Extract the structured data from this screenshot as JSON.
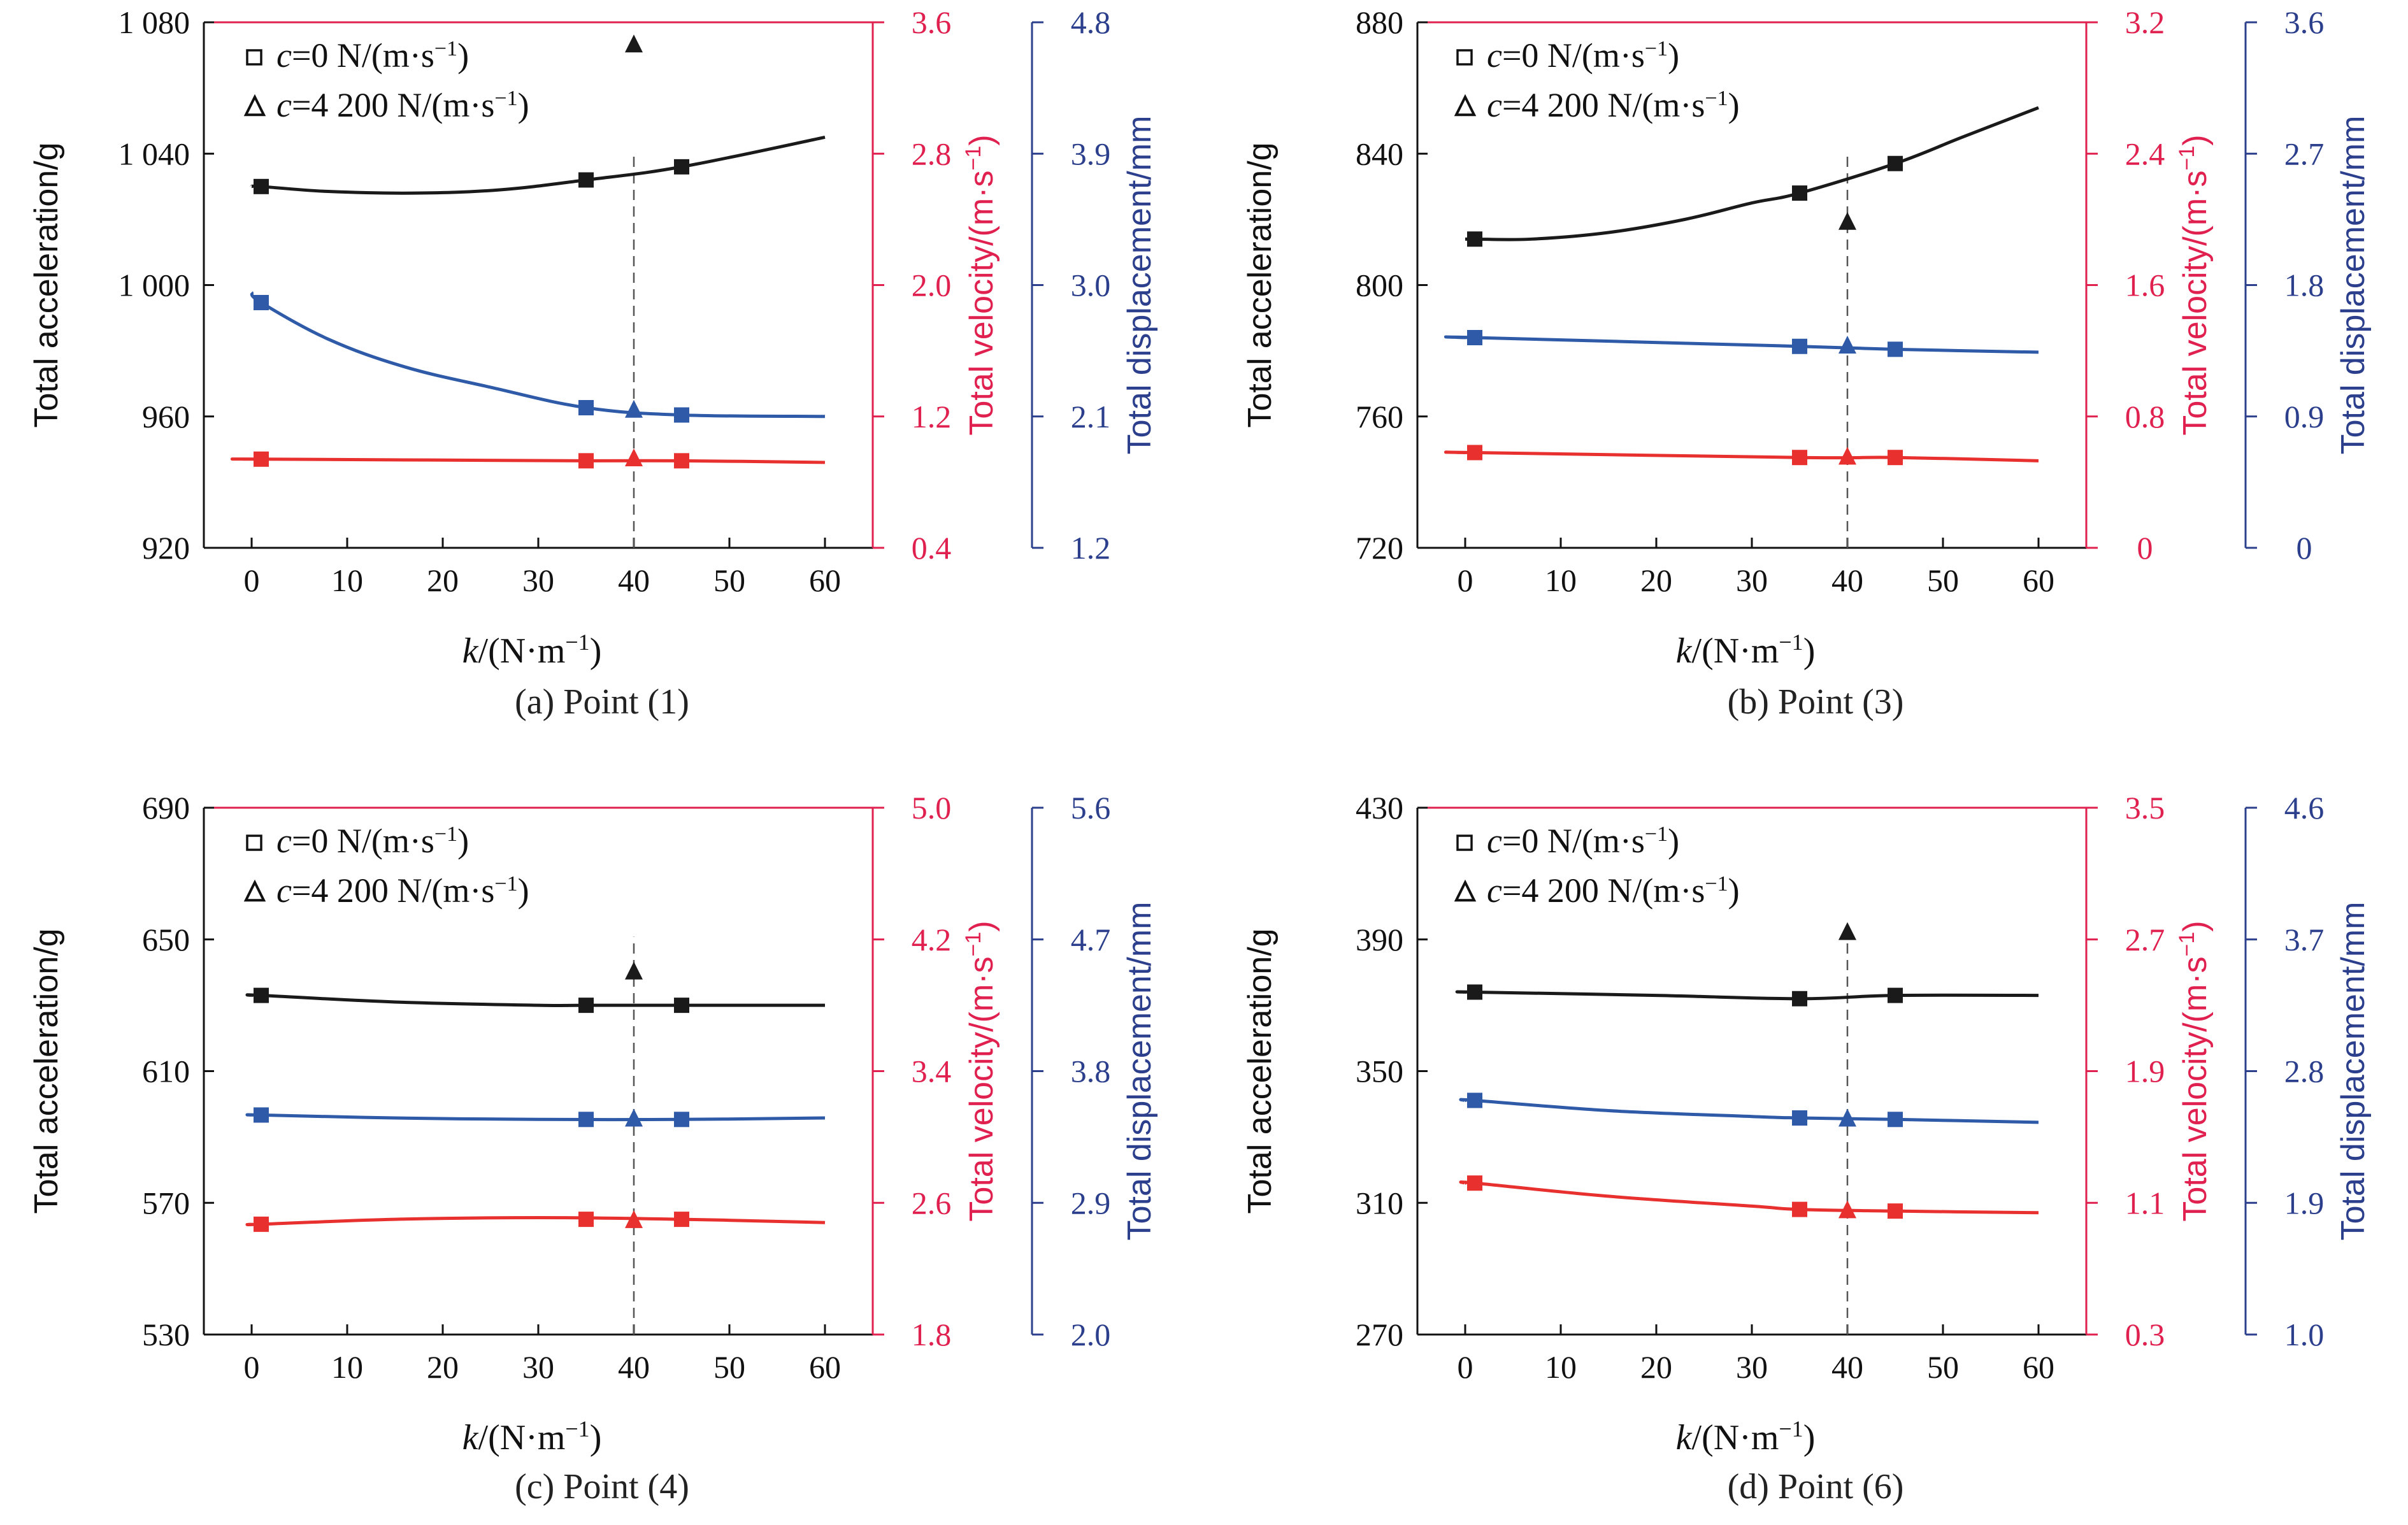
{
  "colors": {
    "acc": "#1a1a1a",
    "vel": "#e8302f",
    "disp": "#2e5aa8",
    "ref": "#555555",
    "vel_axis": "#e0204f",
    "disp_axis": "#2c3f8c"
  },
  "legend": [
    {
      "marker": "square",
      "label_pre": "c",
      "label_post": "=0 N/(m·s",
      "sup": "−1",
      "close": ")"
    },
    {
      "marker": "triangle",
      "label_pre": "c",
      "label_post": "=4 200 N/(m·s",
      "sup": "−1",
      "close": ")"
    }
  ],
  "axes_text": {
    "acc": "Total acceleration/g",
    "vel_pre": "Total velocity/(m·s",
    "vel_sup": "−1",
    "vel_close": ")",
    "disp": "Total displacement/mm",
    "x_pre": "k",
    "x_post": "/(N·m",
    "x_sup": "−1",
    "x_close": ")"
  },
  "chart_data": [
    {
      "type": "line",
      "caption": "(a) Point (1)",
      "x_ticks": [
        0,
        10,
        20,
        30,
        40,
        50,
        60
      ],
      "x_range": [
        -5,
        65
      ],
      "ref_x": 40,
      "acc_axis": {
        "range": [
          920,
          1080
        ],
        "ticks": [
          "920",
          "960",
          "1 000",
          "1 040",
          "1 080"
        ],
        "tick_values": [
          920,
          960,
          1000,
          1040,
          1080
        ]
      },
      "vel_axis": {
        "range": [
          0.4,
          3.6
        ],
        "ticks": [
          "0.4",
          "1.2",
          "2.0",
          "2.8",
          "3.6"
        ],
        "tick_values": [
          0.4,
          1.2,
          2.0,
          2.8,
          3.6
        ]
      },
      "disp_axis": {
        "range": [
          1.2,
          4.8
        ],
        "ticks": [
          "1.2",
          "2.1",
          "3.0",
          "3.9",
          "4.8"
        ],
        "tick_values": [
          1.2,
          2.1,
          3.0,
          3.9,
          4.8
        ]
      },
      "series": [
        {
          "name": "acceleration",
          "axis": "acc",
          "x": [
            0,
            1,
            8,
            17,
            26,
            35,
            45,
            60
          ],
          "y": [
            1030,
            1030,
            1028.5,
            1028,
            1029,
            1032,
            1036,
            1045
          ],
          "markers_x": [
            1,
            35,
            45
          ],
          "markers_y": [
            1030,
            1032,
            1036
          ],
          "tri": {
            "x": 40,
            "y": 1073
          }
        },
        {
          "name": "velocity",
          "axis": "vel",
          "x": [
            0,
            1,
            35,
            45,
            60
          ],
          "y": [
            0.94,
            0.94,
            0.93,
            0.93,
            0.92
          ],
          "markers_x": [
            1,
            35,
            45
          ],
          "markers_y": [
            0.94,
            0.93,
            0.93
          ],
          "tri": {
            "x": 40,
            "y": 0.94
          }
        },
        {
          "name": "displacement",
          "axis": "disp",
          "x": [
            0,
            1,
            8,
            16,
            25,
            35,
            45,
            60
          ],
          "y": [
            2.95,
            2.88,
            2.63,
            2.44,
            2.3,
            2.16,
            2.11,
            2.1
          ],
          "markers_x": [
            1,
            35,
            45
          ],
          "markers_y": [
            2.88,
            2.16,
            2.11
          ],
          "tri": {
            "x": 40,
            "y": 2.14
          }
        }
      ]
    },
    {
      "type": "line",
      "caption": "(b) Point (3)",
      "x_ticks": [
        0,
        10,
        20,
        30,
        40,
        50,
        60
      ],
      "x_range": [
        -5,
        65
      ],
      "ref_x": 40,
      "acc_axis": {
        "range": [
          720,
          880
        ],
        "ticks": [
          "720",
          "760",
          "800",
          "840",
          "880"
        ],
        "tick_values": [
          720,
          760,
          800,
          840,
          880
        ]
      },
      "vel_axis": {
        "range": [
          0,
          3.2
        ],
        "ticks": [
          "0",
          "0.8",
          "1.6",
          "2.4",
          "3.2"
        ],
        "tick_values": [
          0,
          0.8,
          1.6,
          2.4,
          3.2
        ]
      },
      "disp_axis": {
        "range": [
          0,
          3.6
        ],
        "ticks": [
          "0",
          "0.9",
          "1.8",
          "2.7",
          "3.6"
        ],
        "tick_values": [
          0,
          0.9,
          1.8,
          2.7,
          3.6
        ]
      },
      "series": [
        {
          "name": "acceleration",
          "axis": "acc",
          "x": [
            0,
            1,
            7,
            15,
            23,
            30,
            35,
            45,
            52,
            60
          ],
          "y": [
            814,
            814,
            814,
            816,
            820,
            825,
            828,
            837,
            845,
            854
          ],
          "markers_x": [
            1,
            35,
            45
          ],
          "markers_y": [
            814,
            828,
            837
          ],
          "tri": {
            "x": 40,
            "y": 819
          }
        },
        {
          "name": "velocity",
          "axis": "vel",
          "x": [
            0,
            1,
            35,
            45,
            60
          ],
          "y": [
            0.58,
            0.58,
            0.55,
            0.55,
            0.53
          ],
          "markers_x": [
            1,
            35,
            45
          ],
          "markers_y": [
            0.58,
            0.55,
            0.55
          ],
          "tri": {
            "x": 40,
            "y": 0.55
          }
        },
        {
          "name": "displacement",
          "axis": "disp",
          "x": [
            0,
            1,
            35,
            45,
            60
          ],
          "y": [
            1.44,
            1.44,
            1.38,
            1.36,
            1.34
          ],
          "markers_x": [
            1,
            35,
            45
          ],
          "markers_y": [
            1.44,
            1.38,
            1.36
          ],
          "tri": {
            "x": 40,
            "y": 1.38
          }
        }
      ]
    },
    {
      "type": "line",
      "caption": "(c) Point (4)",
      "x_ticks": [
        0,
        10,
        20,
        30,
        40,
        50,
        60
      ],
      "x_range": [
        -5,
        65
      ],
      "ref_x": 40,
      "acc_axis": {
        "range": [
          530,
          690
        ],
        "ticks": [
          "530",
          "570",
          "610",
          "650",
          "690"
        ],
        "tick_values": [
          530,
          570,
          610,
          650,
          690
        ]
      },
      "vel_axis": {
        "range": [
          1.8,
          5.0
        ],
        "ticks": [
          "1.8",
          "2.6",
          "3.4",
          "4.2",
          "5.0"
        ],
        "tick_values": [
          1.8,
          2.6,
          3.4,
          4.2,
          5.0
        ]
      },
      "disp_axis": {
        "range": [
          2.0,
          5.6
        ],
        "ticks": [
          "2.0",
          "2.9",
          "3.8",
          "4.7",
          "5.6"
        ],
        "tick_values": [
          2.0,
          2.9,
          3.8,
          4.7,
          5.6
        ]
      },
      "series": [
        {
          "name": "acceleration",
          "axis": "acc",
          "x": [
            0,
            1,
            15,
            30,
            35,
            45,
            60
          ],
          "y": [
            633,
            633,
            631,
            630,
            630,
            630,
            630
          ],
          "markers_x": [
            1,
            35,
            45
          ],
          "markers_y": [
            633,
            630,
            630
          ],
          "tri": {
            "x": 40,
            "y": 640
          }
        },
        {
          "name": "velocity",
          "axis": "vel",
          "x": [
            0,
            1,
            15,
            30,
            45,
            60
          ],
          "y": [
            2.47,
            2.47,
            2.5,
            2.51,
            2.5,
            2.48
          ],
          "markers_x": [
            1,
            35,
            45
          ],
          "markers_y": [
            2.47,
            2.5,
            2.5
          ],
          "tri": {
            "x": 40,
            "y": 2.49
          }
        },
        {
          "name": "displacement",
          "axis": "disp",
          "x": [
            0,
            1,
            15,
            30,
            45,
            60
          ],
          "y": [
            3.5,
            3.5,
            3.48,
            3.47,
            3.47,
            3.48
          ],
          "markers_x": [
            1,
            35,
            45
          ],
          "markers_y": [
            3.5,
            3.47,
            3.47
          ],
          "tri": {
            "x": 40,
            "y": 3.47
          }
        }
      ]
    },
    {
      "type": "line",
      "caption": "(d) Point (6)",
      "x_ticks": [
        0,
        10,
        20,
        30,
        40,
        50,
        60
      ],
      "x_range": [
        -5,
        65
      ],
      "ref_x": 40,
      "acc_axis": {
        "range": [
          270,
          430
        ],
        "ticks": [
          "270",
          "310",
          "350",
          "390",
          "430"
        ],
        "tick_values": [
          270,
          310,
          350,
          390,
          430
        ]
      },
      "vel_axis": {
        "range": [
          0.3,
          3.5
        ],
        "ticks": [
          "0.3",
          "1.1",
          "1.9",
          "2.7",
          "3.5"
        ],
        "tick_values": [
          0.3,
          1.1,
          1.9,
          2.7,
          3.5
        ]
      },
      "disp_axis": {
        "range": [
          1.0,
          4.6
        ],
        "ticks": [
          "1.0",
          "1.9",
          "2.8",
          "3.7",
          "4.6"
        ],
        "tick_values": [
          1.0,
          1.9,
          2.8,
          3.7,
          4.6
        ]
      },
      "series": [
        {
          "name": "acceleration",
          "axis": "acc",
          "x": [
            0,
            1,
            20,
            35,
            45,
            60
          ],
          "y": [
            374,
            374,
            373,
            372,
            373,
            373
          ],
          "markers_x": [
            1,
            35,
            45
          ],
          "markers_y": [
            374,
            372,
            373
          ],
          "tri": {
            "x": 40,
            "y": 392
          }
        },
        {
          "name": "velocity",
          "axis": "vel",
          "x": [
            0,
            1,
            15,
            30,
            35,
            45,
            60
          ],
          "y": [
            1.22,
            1.22,
            1.14,
            1.08,
            1.06,
            1.05,
            1.04
          ],
          "markers_x": [
            1,
            35,
            45
          ],
          "markers_y": [
            1.22,
            1.06,
            1.05
          ],
          "tri": {
            "x": 40,
            "y": 1.05
          }
        },
        {
          "name": "displacement",
          "axis": "disp",
          "x": [
            0,
            1,
            15,
            30,
            35,
            45,
            60
          ],
          "y": [
            2.6,
            2.6,
            2.53,
            2.49,
            2.48,
            2.47,
            2.45
          ],
          "markers_x": [
            1,
            35,
            45
          ],
          "markers_y": [
            2.6,
            2.48,
            2.47
          ],
          "tri": {
            "x": 40,
            "y": 2.47
          }
        }
      ]
    }
  ]
}
